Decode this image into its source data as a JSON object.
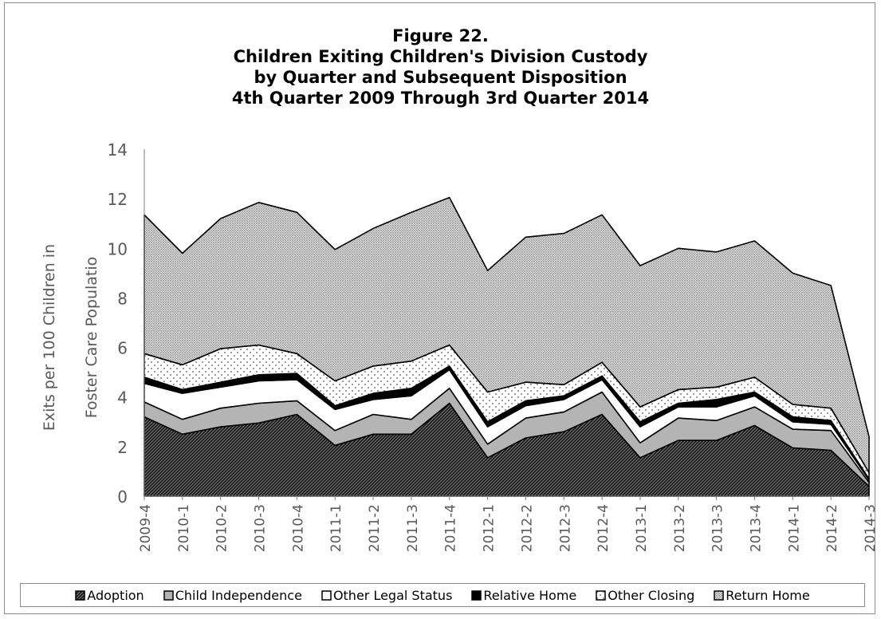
{
  "chart_data": {
    "type": "area",
    "stacked": true,
    "title": [
      "Figure 22.",
      "Children Exiting Children's Division Custody",
      "by Quarter and Subsequent Disposition",
      "4th Quarter 2009 Through 3rd Quarter 2014"
    ],
    "ylabel_lines": [
      "Exits per 100 Children in",
      "Foster Care Populatio"
    ],
    "xlabel": "",
    "ylim": [
      0,
      14
    ],
    "yticks": [
      0,
      2,
      4,
      6,
      8,
      10,
      12,
      14
    ],
    "grid": false,
    "legend_position": "bottom",
    "categories": [
      "2009-4",
      "2010-1",
      "2010-2",
      "2010-3",
      "2010-4",
      "2011-1",
      "2011-2",
      "2011-3",
      "2011-4",
      "2012-1",
      "2012-2",
      "2012-3",
      "2012-4",
      "2013-1",
      "2013-2",
      "2013-3",
      "2013-4",
      "2014-1",
      "2014-2",
      "2014-3"
    ],
    "series": [
      {
        "name": "Adoption",
        "pattern": "diagonal-hatch",
        "values": [
          3.2,
          2.5,
          2.8,
          2.95,
          3.3,
          2.05,
          2.5,
          2.5,
          3.75,
          1.55,
          2.35,
          2.6,
          3.3,
          1.55,
          2.25,
          2.25,
          2.85,
          1.95,
          1.85,
          0.4
        ]
      },
      {
        "name": "Child Independence",
        "pattern": "gray",
        "values": [
          0.6,
          0.6,
          0.75,
          0.8,
          0.55,
          0.6,
          0.8,
          0.6,
          0.6,
          0.55,
          0.8,
          0.8,
          0.9,
          0.6,
          0.9,
          0.8,
          0.75,
          0.75,
          0.8,
          0.15
        ]
      },
      {
        "name": "Other Legal Status",
        "pattern": "white",
        "values": [
          0.75,
          1.05,
          0.85,
          0.9,
          0.85,
          0.85,
          0.6,
          0.95,
          0.75,
          0.7,
          0.5,
          0.5,
          0.5,
          0.65,
          0.45,
          0.55,
          0.45,
          0.3,
          0.25,
          0.1
        ]
      },
      {
        "name": "Relative Home",
        "pattern": "black",
        "values": [
          0.25,
          0.15,
          0.2,
          0.25,
          0.25,
          0.15,
          0.25,
          0.3,
          0.15,
          0.2,
          0.2,
          0.15,
          0.15,
          0.2,
          0.15,
          0.3,
          0.15,
          0.2,
          0.15,
          0.05
        ]
      },
      {
        "name": "Other Closing",
        "pattern": "sparse-dots",
        "values": [
          0.95,
          1.0,
          1.35,
          1.2,
          0.8,
          1.0,
          1.1,
          1.1,
          0.85,
          1.2,
          0.75,
          0.45,
          0.55,
          0.6,
          0.55,
          0.5,
          0.6,
          0.5,
          0.5,
          0.25
        ]
      },
      {
        "name": "Return Home",
        "pattern": "dense-dots",
        "values": [
          5.6,
          4.5,
          5.25,
          5.75,
          5.7,
          5.3,
          5.55,
          6.0,
          5.95,
          4.9,
          5.85,
          6.1,
          5.95,
          5.7,
          5.7,
          5.45,
          5.5,
          5.3,
          4.95,
          1.45
        ]
      }
    ]
  }
}
